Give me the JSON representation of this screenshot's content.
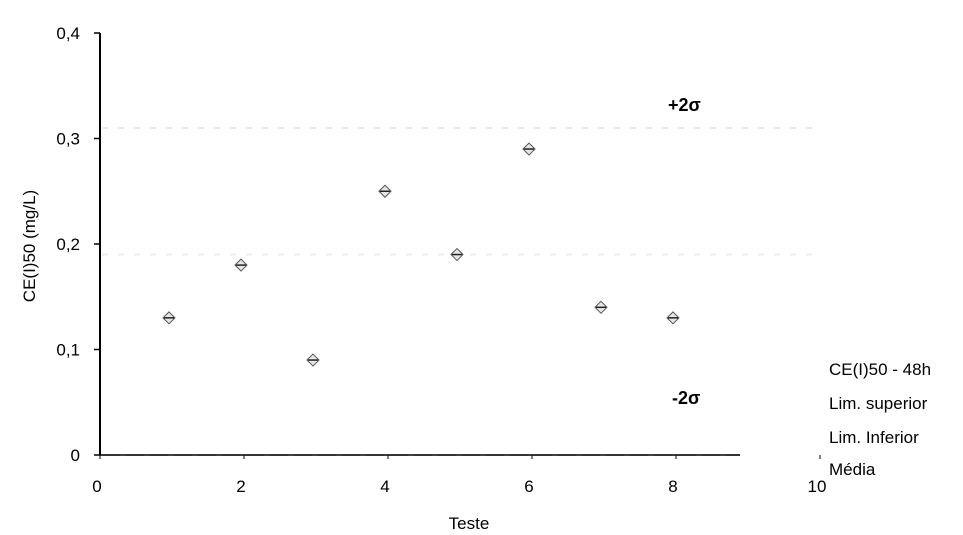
{
  "chart_data": {
    "type": "scatter",
    "xlabel": "Teste",
    "ylabel": "CE(I)50 (mg/L)",
    "xlim": [
      0,
      10
    ],
    "ylim": [
      0,
      0.4
    ],
    "x_ticks": [
      "0",
      "2",
      "4",
      "6",
      "8",
      "10"
    ],
    "y_ticks": [
      "0",
      "0,1",
      "0,2",
      "0,3",
      "0,4"
    ],
    "grid": false,
    "series": [
      {
        "name": "CE(I)50 - 48h",
        "x": [
          1,
          2,
          3,
          4,
          5,
          6,
          7,
          8
        ],
        "y": [
          0.13,
          0.18,
          0.09,
          0.25,
          0.19,
          0.29,
          0.14,
          0.13
        ]
      },
      {
        "name": "Lim. superior",
        "value": 0.31,
        "color": "#e8e8e8"
      },
      {
        "name": "Lim. Inferior",
        "value": 0.0,
        "color": "#d0d0d0"
      },
      {
        "name": "Média",
        "value": 0.19,
        "color": "#ededed"
      }
    ],
    "annotations": [
      "+2σ",
      "-2σ"
    ],
    "legend_position": "right"
  }
}
